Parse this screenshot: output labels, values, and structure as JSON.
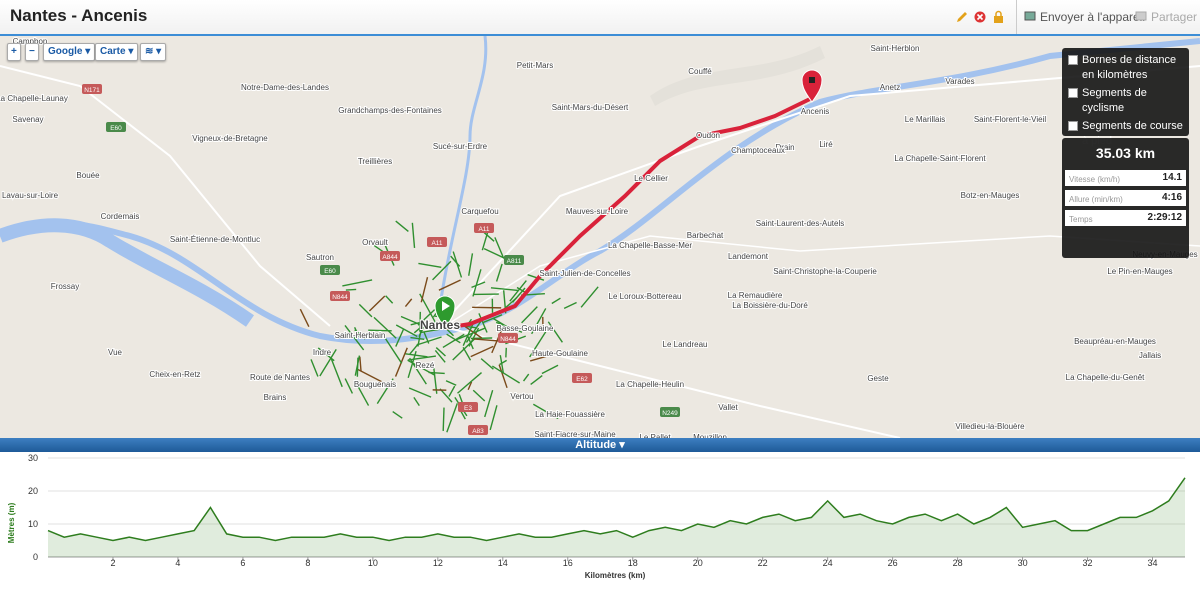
{
  "header": {
    "title": "Nantes - Ancenis",
    "send": "Envoyer à l'appareil",
    "share": "Partager"
  },
  "controls": {
    "zoom_in": "+",
    "zoom_out": "−",
    "provider": "Google",
    "map_type": "Carte"
  },
  "legend": [
    "Bornes de distance en kilomètres",
    "Segments de cyclisme",
    "Segments de course à pied"
  ],
  "stats": {
    "distance": "35.03 km",
    "rows": [
      {
        "label": "Vitesse (km/h)",
        "value": "14.1"
      },
      {
        "label": "Allure (min/km)",
        "value": "4:16"
      },
      {
        "label": "Temps",
        "value": "2:29:12"
      }
    ]
  },
  "map": {
    "labels": [
      "Campbon",
      "Notre-Dame-des-Landes",
      "La Chapelle-Launay",
      "Savenay",
      "Grandchamps-des-Fontaines",
      "Petit-Mars",
      "Saint-Mars-du-Désert",
      "Couffé",
      "Saint-Herblon",
      "Varades",
      "Anetz",
      "Le Marillais",
      "Saint-Florent-le-Vieil",
      "Ancenis",
      "Liré",
      "Drain",
      "Oudon",
      "Champtoceaux",
      "Le Cellier",
      "La Chapelle-Saint-Florent",
      "Vigneux-de-Bretagne",
      "Treillières",
      "Sucé-sur-Erdre",
      "Bouée",
      "Lavau-sur-Loire",
      "Cordemais",
      "Carquefou",
      "Mauves-sur-Loire",
      "Botz-en-Mauges",
      "Saint-Laurent-des-Autels",
      "Barbechat",
      "Landemont",
      "La Chapelle-Basse-Mer",
      "Saint-Étienne-de-Montluc",
      "Orvault",
      "Sautron",
      "Saint-Julien-de-Concelles",
      "Saint-Christophe-la-Couperie",
      "Le Pin-en-Mauges",
      "Neuvy-en-Mauges",
      "Frossay",
      "Le Loroux-Bottereau",
      "La Remaudière",
      "La Boissière-du-Doré",
      "Nantes",
      "Saint-Herblain",
      "Basse-Goulaine",
      "Haute-Goulaine",
      "Le Landreau",
      "Indre",
      "Vue",
      "Rezé",
      "Beaupréau-en-Mauges",
      "Cheix-en-Retz",
      "Bouguenais",
      "Vertou",
      "La Chapelle-Heulin",
      "Geste",
      "La Chapelle-du-Genêt",
      "Brains",
      "Vallet",
      "La Haie-Fouassière",
      "Le Pallet",
      "Mouzillon",
      "Saint-Fiacre-sur-Maine",
      "Villedieu-la-Blouère",
      "Jallais",
      "Route de Nantes"
    ],
    "shields": [
      "N171",
      "E60",
      "A11",
      "A11",
      "E60",
      "A844",
      "N844",
      "A811",
      "N844",
      "E62",
      "N249",
      "E3",
      "A83"
    ]
  },
  "chart_data": {
    "type": "line",
    "title": "Altitude",
    "x_label": "Kilomètres (km)",
    "y_label": "Mètres (m)",
    "xlim": [
      0,
      35
    ],
    "ylim": [
      0,
      30
    ],
    "xticks": [
      2,
      4,
      6,
      8,
      10,
      12,
      14,
      16,
      18,
      20,
      22,
      24,
      26,
      28,
      30,
      32,
      34
    ],
    "yticks": [
      0,
      10,
      20,
      30
    ],
    "grid": true,
    "x": [
      0,
      0.5,
      1,
      1.5,
      2,
      2.5,
      3,
      3.5,
      4,
      4.5,
      5,
      5.5,
      6,
      6.5,
      7,
      7.5,
      8,
      8.5,
      9,
      9.5,
      10,
      10.5,
      11,
      11.5,
      12,
      12.5,
      13,
      13.5,
      14,
      14.5,
      15,
      15.5,
      16,
      16.5,
      17,
      17.5,
      18,
      18.5,
      19,
      19.5,
      20,
      20.5,
      21,
      21.5,
      22,
      22.5,
      23,
      23.5,
      24,
      24.5,
      25,
      25.5,
      26,
      26.5,
      27,
      27.5,
      28,
      28.5,
      29,
      29.5,
      30,
      30.5,
      31,
      31.5,
      32,
      32.5,
      33,
      33.5,
      34,
      34.5,
      35
    ],
    "series": [
      {
        "name": "Altitude",
        "color": "#2e7d1e",
        "values": [
          8,
          6,
          7,
          6,
          5,
          6,
          5,
          6,
          7,
          8,
          15,
          7,
          6,
          6,
          5,
          6,
          6,
          6,
          7,
          6,
          6,
          5,
          6,
          6,
          7,
          6,
          6,
          5,
          6,
          7,
          6,
          6,
          7,
          8,
          7,
          8,
          6,
          8,
          9,
          8,
          10,
          9,
          11,
          10,
          12,
          13,
          11,
          12,
          17,
          12,
          13,
          11,
          10,
          12,
          13,
          11,
          13,
          10,
          12,
          15,
          9,
          10,
          11,
          8,
          8,
          10,
          12,
          12,
          14,
          17,
          24
        ]
      }
    ]
  }
}
